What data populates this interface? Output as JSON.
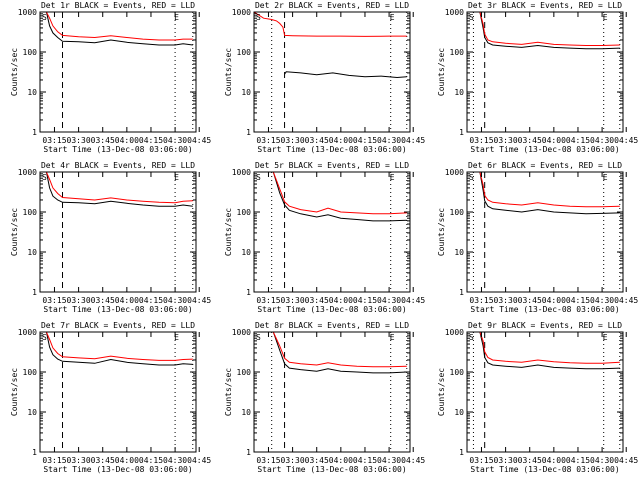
{
  "figure": {
    "xlabel": "Start Time (13-Dec-08 03:06:00)",
    "ylabel": "Counts/sec",
    "x_tick_labels": [
      "03:15",
      "03:30",
      "03:45",
      "04:00",
      "04:15",
      "04:30",
      "04:45"
    ],
    "y_tick_labels": [
      "1",
      "10",
      "100",
      "1000"
    ],
    "colors": {
      "events": "#000000",
      "lld": "#ff0000"
    }
  },
  "chart_data": [
    {
      "type": "line",
      "title": "Det 1r BLACK = Events, RED = LLD",
      "x_unit": "minutes since 03:06",
      "xlim": [
        6,
        103
      ],
      "ylim": [
        1,
        1000
      ],
      "yscale": "log",
      "start_marker": "S",
      "end_marker": "E",
      "series": [
        {
          "x": [
            6,
            10,
            12,
            14,
            17,
            20,
            30,
            40,
            50,
            60,
            70,
            80,
            90,
            95,
            101
          ],
          "values": [
            1000,
            1000,
            450,
            300,
            230,
            185,
            180,
            170,
            200,
            175,
            160,
            150,
            150,
            160,
            150
          ]
        },
        {
          "x": [
            6,
            10,
            12,
            14,
            17,
            20,
            30,
            40,
            50,
            60,
            70,
            80,
            90,
            95,
            101
          ],
          "values": [
            1000,
            1000,
            700,
            450,
            320,
            260,
            240,
            230,
            255,
            230,
            210,
            200,
            200,
            210,
            210
          ]
        }
      ],
      "vlines": [
        {
          "x": 20,
          "style": "dashed"
        },
        {
          "x": 90,
          "style": "dotted"
        },
        {
          "x": 101,
          "style": "dotted"
        }
      ]
    },
    {
      "type": "line",
      "title": "Det 2r BLACK = Events, RED = LLD",
      "x_unit": "minutes since 03:06",
      "xlim": [
        6,
        103
      ],
      "ylim": [
        1,
        1000
      ],
      "yscale": "log",
      "start_marker": "S",
      "end_marker": "E",
      "series": [
        {
          "x": [
            25,
            26,
            35,
            45,
            55,
            65,
            75,
            85,
            95,
            101
          ],
          "values": [
            28,
            32,
            30,
            27,
            30,
            26,
            24,
            25,
            23,
            24
          ]
        },
        {
          "x": [
            6,
            12,
            17,
            20,
            22,
            24,
            25,
            30,
            45,
            60,
            75,
            90,
            101
          ],
          "values": [
            1000,
            700,
            650,
            600,
            520,
            420,
            260,
            255,
            250,
            250,
            245,
            250,
            250
          ]
        }
      ],
      "vlines": [
        {
          "x": 17,
          "style": "dotted"
        },
        {
          "x": 25,
          "style": "dashed"
        },
        {
          "x": 91,
          "style": "dotted"
        },
        {
          "x": 101,
          "style": "dotted"
        }
      ]
    },
    {
      "type": "line",
      "title": "Det 3r BLACK = Events, RED = LLD",
      "x_unit": "minutes since 03:06",
      "xlim": [
        6,
        103
      ],
      "ylim": [
        1,
        1000
      ],
      "yscale": "log",
      "start_marker": "S",
      "end_marker": "E",
      "series": [
        {
          "x": [
            6,
            14,
            16,
            17,
            19,
            22,
            30,
            40,
            50,
            60,
            70,
            80,
            90,
            101
          ],
          "values": [
            1000,
            1000,
            400,
            230,
            170,
            150,
            140,
            130,
            145,
            130,
            125,
            120,
            120,
            125
          ]
        },
        {
          "x": [
            6,
            14,
            16,
            17,
            19,
            22,
            30,
            40,
            50,
            60,
            70,
            80,
            90,
            101
          ],
          "values": [
            1000,
            1000,
            500,
            280,
            200,
            180,
            165,
            155,
            175,
            155,
            150,
            145,
            145,
            150
          ]
        }
      ],
      "vlines": [
        {
          "x": 10,
          "style": "dotted"
        },
        {
          "x": 17,
          "style": "dashed"
        },
        {
          "x": 91,
          "style": "dotted"
        },
        {
          "x": 101,
          "style": "dotted"
        }
      ]
    },
    {
      "type": "line",
      "title": "Det 4r BLACK = Events, RED = LLD",
      "x_unit": "minutes since 03:06",
      "xlim": [
        6,
        103
      ],
      "ylim": [
        1,
        1000
      ],
      "yscale": "log",
      "start_marker": "S",
      "end_marker": "E",
      "series": [
        {
          "x": [
            6,
            10,
            12,
            14,
            17,
            20,
            30,
            40,
            50,
            60,
            70,
            80,
            90,
            95,
            101
          ],
          "values": [
            1000,
            1000,
            400,
            250,
            200,
            175,
            170,
            160,
            185,
            165,
            150,
            140,
            140,
            150,
            140
          ]
        },
        {
          "x": [
            6,
            10,
            12,
            14,
            17,
            20,
            30,
            40,
            50,
            60,
            70,
            80,
            90,
            95,
            101
          ],
          "values": [
            1000,
            1000,
            650,
            400,
            290,
            230,
            215,
            200,
            225,
            200,
            185,
            175,
            170,
            185,
            190
          ]
        }
      ],
      "vlines": [
        {
          "x": 20,
          "style": "dashed"
        },
        {
          "x": 90,
          "style": "dotted"
        },
        {
          "x": 101,
          "style": "dotted"
        }
      ]
    },
    {
      "type": "line",
      "title": "Det 5r BLACK = Events, RED = LLD",
      "x_unit": "minutes since 03:06",
      "xlim": [
        6,
        103
      ],
      "ylim": [
        1,
        1000
      ],
      "yscale": "log",
      "start_marker": "S",
      "end_marker": "E",
      "series": [
        {
          "x": [
            6,
            18,
            22,
            25,
            28,
            35,
            45,
            52,
            60,
            70,
            80,
            90,
            101
          ],
          "values": [
            1000,
            1000,
            300,
            150,
            110,
            90,
            75,
            85,
            70,
            65,
            60,
            60,
            62
          ]
        },
        {
          "x": [
            6,
            18,
            22,
            25,
            28,
            35,
            45,
            52,
            60,
            70,
            80,
            90,
            101
          ],
          "values": [
            1000,
            1000,
            380,
            180,
            140,
            115,
            100,
            125,
            100,
            95,
            90,
            90,
            95
          ]
        }
      ],
      "vlines": [
        {
          "x": 17,
          "style": "dotted"
        },
        {
          "x": 25,
          "style": "dashed"
        },
        {
          "x": 91,
          "style": "dotted"
        },
        {
          "x": 101,
          "style": "dotted"
        }
      ]
    },
    {
      "type": "line",
      "title": "Det 6r BLACK = Events, RED = LLD",
      "x_unit": "minutes since 03:06",
      "xlim": [
        6,
        103
      ],
      "ylim": [
        1,
        1000
      ],
      "yscale": "log",
      "start_marker": "S",
      "end_marker": "E",
      "series": [
        {
          "x": [
            6,
            14,
            16,
            17,
            19,
            22,
            30,
            40,
            50,
            60,
            70,
            80,
            90,
            101
          ],
          "values": [
            1000,
            1000,
            350,
            190,
            140,
            120,
            110,
            100,
            115,
            100,
            95,
            90,
            92,
            95
          ]
        },
        {
          "x": [
            6,
            14,
            16,
            17,
            19,
            22,
            30,
            40,
            50,
            60,
            70,
            80,
            90,
            101
          ],
          "values": [
            1000,
            1000,
            480,
            260,
            200,
            175,
            160,
            150,
            170,
            150,
            140,
            135,
            135,
            140
          ]
        }
      ],
      "vlines": [
        {
          "x": 10,
          "style": "dotted"
        },
        {
          "x": 17,
          "style": "dashed"
        },
        {
          "x": 91,
          "style": "dotted"
        },
        {
          "x": 101,
          "style": "dotted"
        }
      ]
    },
    {
      "type": "line",
      "title": "Det 7r BLACK = Events, RED = LLD",
      "x_unit": "minutes since 03:06",
      "xlim": [
        6,
        103
      ],
      "ylim": [
        1,
        1000
      ],
      "yscale": "log",
      "start_marker": "S",
      "end_marker": "E",
      "series": [
        {
          "x": [
            6,
            10,
            12,
            14,
            17,
            20,
            30,
            40,
            50,
            60,
            70,
            80,
            90,
            95,
            101
          ],
          "values": [
            1000,
            1000,
            420,
            270,
            210,
            185,
            175,
            165,
            205,
            175,
            160,
            150,
            150,
            160,
            155
          ]
        },
        {
          "x": [
            6,
            10,
            12,
            14,
            17,
            20,
            30,
            40,
            50,
            60,
            70,
            80,
            90,
            95,
            101
          ],
          "values": [
            1000,
            1000,
            650,
            400,
            290,
            240,
            225,
            215,
            250,
            220,
            205,
            195,
            195,
            205,
            210
          ]
        }
      ],
      "vlines": [
        {
          "x": 20,
          "style": "dashed"
        },
        {
          "x": 90,
          "style": "dotted"
        },
        {
          "x": 101,
          "style": "dotted"
        }
      ]
    },
    {
      "type": "line",
      "title": "Det 8r BLACK = Events, RED = LLD",
      "x_unit": "minutes since 03:06",
      "xlim": [
        6,
        103
      ],
      "ylim": [
        1,
        1000
      ],
      "yscale": "log",
      "start_marker": "S",
      "end_marker": "E",
      "series": [
        {
          "x": [
            6,
            18,
            22,
            25,
            28,
            35,
            45,
            52,
            60,
            70,
            80,
            90,
            101
          ],
          "values": [
            1000,
            1000,
            350,
            160,
            125,
            115,
            105,
            120,
            105,
            100,
            95,
            95,
            100
          ]
        },
        {
          "x": [
            6,
            18,
            22,
            25,
            28,
            35,
            45,
            52,
            60,
            70,
            80,
            90,
            101
          ],
          "values": [
            1000,
            1000,
            450,
            220,
            175,
            160,
            150,
            170,
            150,
            140,
            135,
            135,
            140
          ]
        }
      ],
      "vlines": [
        {
          "x": 17,
          "style": "dotted"
        },
        {
          "x": 25,
          "style": "dashed"
        },
        {
          "x": 91,
          "style": "dotted"
        },
        {
          "x": 101,
          "style": "dotted"
        }
      ]
    },
    {
      "type": "line",
      "title": "Det 9r BLACK = Events, RED = LLD",
      "x_unit": "minutes since 03:06",
      "xlim": [
        6,
        103
      ],
      "ylim": [
        1,
        1000
      ],
      "yscale": "log",
      "start_marker": "S",
      "end_marker": "E",
      "series": [
        {
          "x": [
            6,
            14,
            16,
            17,
            19,
            22,
            30,
            40,
            50,
            60,
            70,
            80,
            90,
            101
          ],
          "values": [
            1000,
            1000,
            450,
            230,
            170,
            150,
            140,
            130,
            150,
            130,
            125,
            120,
            120,
            125
          ]
        },
        {
          "x": [
            6,
            14,
            16,
            17,
            19,
            22,
            30,
            40,
            50,
            60,
            70,
            80,
            90,
            101
          ],
          "values": [
            1000,
            1000,
            600,
            320,
            230,
            200,
            185,
            175,
            200,
            180,
            170,
            165,
            165,
            175
          ]
        }
      ],
      "vlines": [
        {
          "x": 10,
          "style": "dotted"
        },
        {
          "x": 17,
          "style": "dashed"
        },
        {
          "x": 91,
          "style": "dotted"
        },
        {
          "x": 101,
          "style": "dotted"
        }
      ]
    }
  ]
}
